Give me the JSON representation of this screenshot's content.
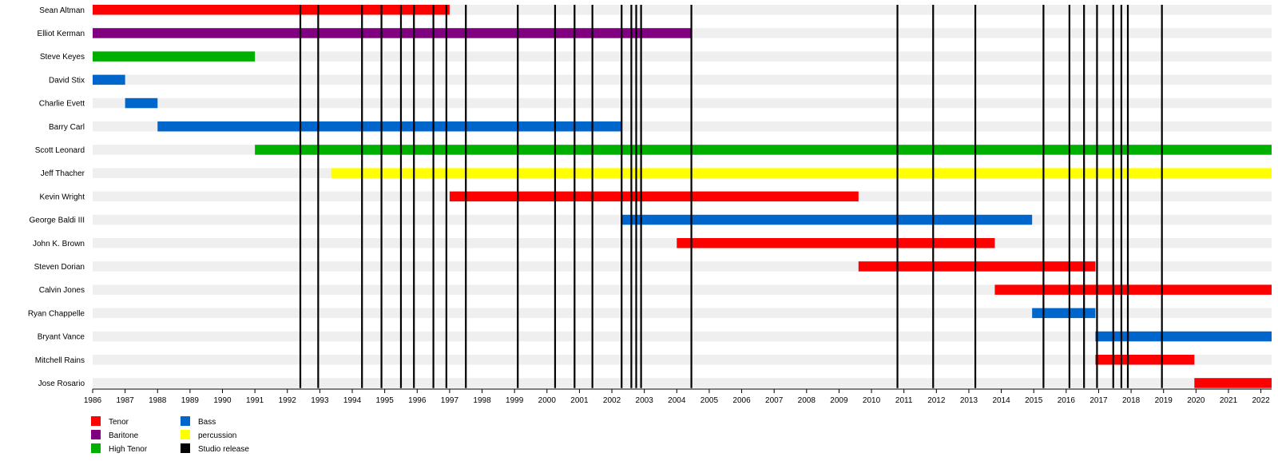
{
  "chart_data": {
    "type": "timeline",
    "x_range": [
      1986,
      2022.33
    ],
    "x_ticks": [
      1986,
      1987,
      1988,
      1989,
      1990,
      1991,
      1992,
      1993,
      1994,
      1995,
      1996,
      1997,
      1998,
      1999,
      2000,
      2001,
      2002,
      2003,
      2004,
      2005,
      2006,
      2007,
      2008,
      2009,
      2010,
      2011,
      2012,
      2013,
      2014,
      2015,
      2016,
      2017,
      2018,
      2019,
      2020,
      2021,
      2022
    ],
    "members": [
      {
        "name": "Sean Altman",
        "start": 1986.0,
        "end": 1997.0,
        "role": "Tenor"
      },
      {
        "name": "Elliot Kerman",
        "start": 1986.0,
        "end": 2004.45,
        "role": "Baritone"
      },
      {
        "name": "Steve Keyes",
        "start": 1986.0,
        "end": 1991.0,
        "role": "High Tenor"
      },
      {
        "name": "David Stix",
        "start": 1986.0,
        "end": 1987.0,
        "role": "Bass"
      },
      {
        "name": "Charlie Evett",
        "start": 1987.0,
        "end": 1988.0,
        "role": "Bass"
      },
      {
        "name": "Barry Carl",
        "start": 1988.0,
        "end": 2002.3,
        "role": "Bass"
      },
      {
        "name": "Scott Leonard",
        "start": 1991.0,
        "end": 2022.33,
        "role": "High Tenor"
      },
      {
        "name": "Jeff Thacher",
        "start": 1993.35,
        "end": 2022.33,
        "role": "percussion"
      },
      {
        "name": "Kevin Wright",
        "start": 1997.0,
        "end": 2009.6,
        "role": "Tenor"
      },
      {
        "name": "George Baldi III",
        "start": 2002.3,
        "end": 2014.95,
        "role": "Bass"
      },
      {
        "name": "John K. Brown",
        "start": 2004.0,
        "end": 2013.8,
        "role": "Tenor"
      },
      {
        "name": "Steven Dorian",
        "start": 2009.6,
        "end": 2016.9,
        "role": "Tenor"
      },
      {
        "name": "Calvin Jones",
        "start": 2013.8,
        "end": 2022.33,
        "role": "Tenor"
      },
      {
        "name": "Ryan Chappelle",
        "start": 2014.95,
        "end": 2016.9,
        "role": "Bass"
      },
      {
        "name": "Bryant Vance",
        "start": 2016.9,
        "end": 2022.33,
        "role": "Bass"
      },
      {
        "name": "Mitchell Rains",
        "start": 2016.9,
        "end": 2019.95,
        "role": "Tenor"
      },
      {
        "name": "Jose Rosario",
        "start": 2019.95,
        "end": 2022.33,
        "role": "Tenor"
      }
    ],
    "studio_releases": [
      1992.4,
      1992.95,
      1994.3,
      1994.9,
      1995.5,
      1995.9,
      1996.5,
      1996.9,
      1997.5,
      1999.1,
      2000.25,
      2000.85,
      2001.4,
      2002.3,
      2002.6,
      2002.75,
      2002.9,
      2004.45,
      2010.8,
      2011.9,
      2013.2,
      2015.3,
      2016.1,
      2016.55,
      2016.95,
      2017.45,
      2017.7,
      2017.9,
      2018.95
    ],
    "legend": [
      {
        "label": "Tenor",
        "color": "#ff0000"
      },
      {
        "label": "Baritone",
        "color": "#800080"
      },
      {
        "label": "High Tenor",
        "color": "#00b000"
      },
      {
        "label": "Bass",
        "color": "#0066cc"
      },
      {
        "label": "percussion",
        "color": "#ffff00"
      },
      {
        "label": "Studio release",
        "color": "#000000"
      }
    ],
    "grid": true,
    "legend_placement": "bottom-left"
  }
}
